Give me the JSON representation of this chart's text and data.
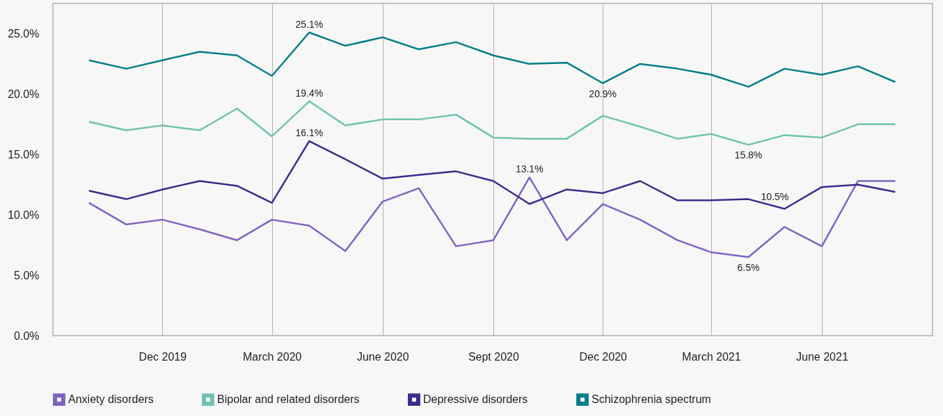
{
  "chart_data": {
    "type": "line",
    "x": [
      "2019-10",
      "2019-11",
      "2019-12",
      "2020-01",
      "2020-02",
      "2020-03",
      "2020-04",
      "2020-05",
      "2020-06",
      "2020-07",
      "2020-08",
      "2020-09",
      "2020-10",
      "2020-11",
      "2020-12",
      "2021-01",
      "2021-02",
      "2021-03",
      "2021-04",
      "2021-05",
      "2021-06",
      "2021-07",
      "2021-08"
    ],
    "series": [
      {
        "name": "Anxiety disorders",
        "color": "#7f63c0",
        "values": [
          11.0,
          9.2,
          9.6,
          8.8,
          7.9,
          9.6,
          9.1,
          7.0,
          11.1,
          12.2,
          7.4,
          7.9,
          13.1,
          7.9,
          10.9,
          9.6,
          7.9,
          6.9,
          6.5,
          9.0,
          7.4,
          12.8,
          12.8
        ],
        "value_labels": [
          null,
          null,
          null,
          null,
          null,
          null,
          null,
          null,
          null,
          null,
          null,
          null,
          "13.1%",
          null,
          null,
          null,
          null,
          null,
          "6.5%",
          null,
          null,
          null,
          null
        ]
      },
      {
        "name": "Bipolar and related disorders",
        "color": "#6fc3b1",
        "values": [
          17.7,
          17.0,
          17.4,
          17.0,
          18.8,
          16.5,
          19.4,
          17.4,
          17.9,
          17.9,
          18.3,
          16.4,
          16.3,
          16.3,
          18.2,
          17.3,
          16.3,
          16.7,
          15.8,
          16.6,
          16.4,
          17.5,
          17.5
        ],
        "value_labels": [
          null,
          null,
          null,
          null,
          null,
          null,
          "19.4%",
          null,
          null,
          null,
          null,
          null,
          null,
          null,
          null,
          null,
          null,
          null,
          "15.8%",
          null,
          null,
          null,
          null
        ]
      },
      {
        "name": "Depressive disorders",
        "color": "#3f2a8a",
        "values": [
          12.0,
          11.3,
          12.1,
          12.8,
          12.4,
          11.0,
          16.1,
          14.6,
          13.0,
          13.3,
          13.6,
          12.8,
          10.9,
          12.1,
          11.8,
          12.8,
          11.2,
          11.2,
          11.3,
          10.5,
          12.3,
          12.5,
          11.9
        ],
        "value_labels": [
          null,
          null,
          null,
          null,
          null,
          null,
          "16.1%",
          null,
          null,
          null,
          null,
          null,
          null,
          null,
          null,
          null,
          null,
          null,
          null,
          "10.5%",
          null,
          null,
          null
        ]
      },
      {
        "name": "Schizophrenia spectrum",
        "color": "#007d88",
        "values": [
          22.8,
          22.1,
          22.8,
          23.5,
          23.2,
          21.5,
          25.1,
          24.0,
          24.7,
          23.7,
          24.3,
          23.2,
          22.5,
          22.6,
          20.9,
          22.5,
          22.1,
          21.6,
          20.6,
          22.1,
          21.6,
          22.3,
          21.0
        ],
        "value_labels": [
          null,
          null,
          null,
          null,
          null,
          null,
          "25.1%",
          null,
          null,
          null,
          null,
          null,
          null,
          null,
          "20.9%",
          null,
          null,
          null,
          null,
          null,
          null,
          null,
          null
        ]
      }
    ],
    "xlim": [
      "2019-09",
      "2021-09"
    ],
    "xticks": [
      {
        "value": "2019-12",
        "label": "Dec 2019"
      },
      {
        "value": "2020-03",
        "label": "March 2020"
      },
      {
        "value": "2020-06",
        "label": "June 2020"
      },
      {
        "value": "2020-09",
        "label": "Sept 2020"
      },
      {
        "value": "2020-12",
        "label": "Dec 2020"
      },
      {
        "value": "2021-03",
        "label": "March 2021"
      },
      {
        "value": "2021-06",
        "label": "June 2021"
      }
    ],
    "ylim": [
      0,
      27.5
    ],
    "yticks": [
      {
        "value": 0,
        "label": "0.0%"
      },
      {
        "value": 5,
        "label": "5.0%"
      },
      {
        "value": 10,
        "label": "10.0%"
      },
      {
        "value": 15,
        "label": "15.0%"
      },
      {
        "value": 20,
        "label": "20.0%"
      },
      {
        "value": 25,
        "label": "25.0%"
      }
    ],
    "grid": "x",
    "legend": "bottom",
    "marker": "none",
    "line_style": "solid"
  }
}
